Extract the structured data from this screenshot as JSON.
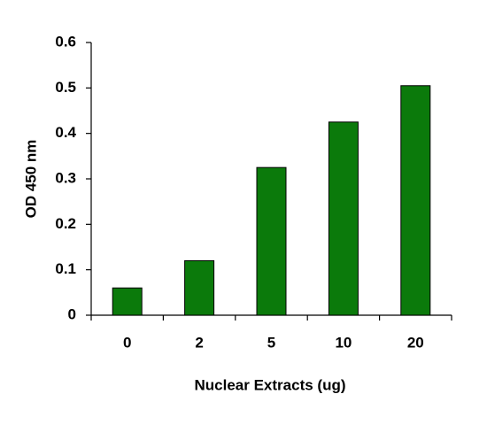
{
  "chart_data": {
    "type": "bar",
    "x_label": "Nuclear Extracts (ug)",
    "y_label": "OD 450 nm",
    "categories": [
      "0",
      "2",
      "5",
      "10",
      "20"
    ],
    "values": [
      0.06,
      0.12,
      0.325,
      0.425,
      0.505
    ],
    "color": "#0b7a0b",
    "ylim": [
      0,
      0.6
    ],
    "yticks": [
      0,
      0.1,
      0.2,
      0.3,
      0.4,
      0.5,
      0.6
    ],
    "grid": false
  }
}
